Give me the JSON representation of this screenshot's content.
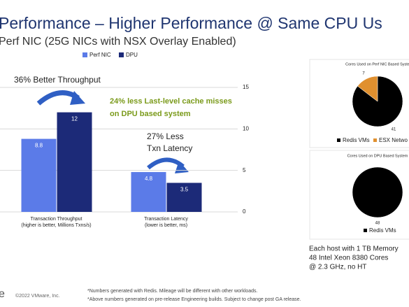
{
  "header": {
    "title": "Performance – Higher Performance @ Same CPU Us",
    "subtitle": "Perf NIC (25G NICs with NSX Overlay Enabled)"
  },
  "chart_data": [
    {
      "type": "bar",
      "categories": [
        [
          "Transaction Throughput",
          "(higher is better, Millions Txns/s)"
        ],
        [
          "Transaction Latency",
          "(lower is better, ms)"
        ]
      ],
      "series": [
        {
          "name": "Perf NIC",
          "color": "#5b7be8",
          "values": [
            8.8,
            4.8
          ]
        },
        {
          "name": "DPU",
          "color": "#1c2a78",
          "values": [
            12,
            3.5
          ]
        }
      ],
      "ylim": [
        0,
        15
      ],
      "yticks": [
        0,
        5,
        10,
        15
      ],
      "grid": true,
      "annotations": [
        "36% Better Throughput",
        "24% less Last-level cache misses",
        "on DPU based system",
        "27% Less",
        "Txn Latency"
      ]
    },
    {
      "type": "pie",
      "title": "Cores Used on Perf NIC Based Syste",
      "categories": [
        "Redis VMs",
        "ESX Netwo"
      ],
      "values": [
        41,
        7
      ],
      "colors": [
        "#000000",
        "#e0902f"
      ]
    },
    {
      "type": "pie",
      "title": "Cores Used on DPU Based System",
      "categories": [
        "Redis VMs"
      ],
      "values": [
        48
      ],
      "colors": [
        "#000000"
      ]
    }
  ],
  "host_note": [
    "Each host with 1 TB Memory",
    "48 Intel Xeon 8380 Cores",
    "@ 2.3 GHz, no HT"
  ],
  "footer": {
    "logo": "e",
    "copyright": "©2022 VMware, Inc.",
    "notes": [
      "*Numbers generated with Redis. Mileage will be different with other workloads.",
      "*Above numbers generated on pre-release Engineering builds. Subject to change post GA release."
    ]
  }
}
